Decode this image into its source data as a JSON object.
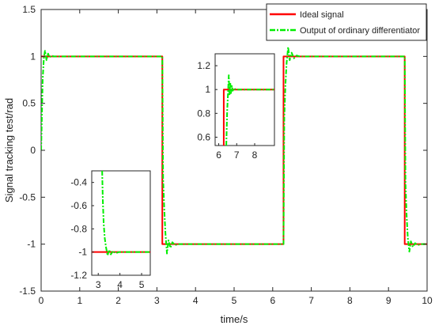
{
  "chart_data": [
    {
      "id": "main",
      "type": "line",
      "xlabel": "time/s",
      "ylabel": "Signal tracking test/rad",
      "xlim": [
        0,
        10
      ],
      "ylim": [
        -1.5,
        1.5
      ],
      "xticks": [
        0,
        1,
        2,
        3,
        4,
        5,
        6,
        7,
        8,
        9,
        10
      ],
      "yticks": [
        -1.5,
        -1,
        -0.5,
        0,
        0.5,
        1,
        1.5
      ],
      "ytick_labels": [
        "-1.5",
        "-1",
        "-0.5",
        "0",
        "0.5",
        "1",
        "1.5"
      ],
      "legend": {
        "position": "top-right",
        "entries": [
          "Ideal signal",
          "Output of ordinary differentiator"
        ]
      },
      "series": [
        {
          "name": "Ideal signal",
          "color": "#ff0000",
          "style": "solid",
          "x": [
            0,
            3.14,
            3.14,
            6.28,
            6.28,
            9.42,
            9.42,
            10
          ],
          "y": [
            1,
            1,
            -1,
            -1,
            1,
            1,
            -1,
            -1
          ]
        },
        {
          "name": "Output of ordinary differentiator",
          "color": "#00ee00",
          "style": "dash-dot",
          "x": [
            0,
            0.04,
            0.07,
            0.1,
            0.14,
            0.18,
            0.22,
            0.27,
            0.32,
            0.4,
            0.5,
            3.14,
            3.16,
            3.19,
            3.22,
            3.26,
            3.3,
            3.35,
            3.4,
            3.47,
            3.55,
            3.7,
            3.9,
            6.28,
            6.3,
            6.33,
            6.36,
            6.4,
            6.44,
            6.49,
            6.55,
            6.62,
            6.7,
            6.85,
            7.05,
            9.42,
            9.44,
            9.47,
            9.5,
            9.54,
            9.58,
            9.63,
            9.69,
            9.76,
            9.85,
            10
          ],
          "y": [
            0,
            0.75,
            0.98,
            1.06,
            0.96,
            1.03,
            0.99,
            1.01,
            1,
            1,
            1,
            1,
            -0.3,
            -0.62,
            -0.88,
            -1.1,
            -0.96,
            -1.04,
            -0.98,
            -1.01,
            -1,
            -1,
            -1,
            -1,
            0.35,
            0.7,
            0.93,
            1.1,
            0.96,
            1.04,
            0.98,
            1.01,
            1,
            1,
            1,
            1,
            -0.35,
            -0.7,
            -0.93,
            -1.08,
            -0.97,
            -1.03,
            -0.99,
            -1.01,
            -1,
            -1
          ]
        }
      ]
    },
    {
      "id": "inset-top",
      "type": "line",
      "xlim": [
        5.8,
        9.1
      ],
      "ylim": [
        0.53,
        1.3
      ],
      "xticks": [
        6,
        7,
        8
      ],
      "yticks": [
        0.6,
        0.8,
        1,
        1.2
      ],
      "ytick_labels": [
        "0.6",
        "0.8",
        "1",
        "1.2"
      ],
      "series": [
        {
          "name": "Ideal signal",
          "color": "#ff0000",
          "style": "solid",
          "x": [
            6.28,
            6.28,
            9.1
          ],
          "y": [
            0.53,
            1,
            1
          ]
        },
        {
          "name": "Output of ordinary differentiator",
          "color": "#00ee00",
          "style": "dash-dot",
          "x": [
            6.42,
            6.47,
            6.52,
            6.56,
            6.6,
            6.64,
            6.68,
            6.73,
            6.78,
            6.85,
            6.95,
            7.2,
            9.1
          ],
          "y": [
            0.53,
            0.82,
            0.98,
            1.12,
            0.95,
            1.06,
            0.97,
            1.03,
            0.99,
            1.01,
            1,
            1,
            1
          ]
        }
      ]
    },
    {
      "id": "inset-bottom",
      "type": "line",
      "xlim": [
        2.7,
        5.4
      ],
      "ylim": [
        -1.2,
        -0.3
      ],
      "xticks": [
        3,
        4,
        5
      ],
      "yticks": [
        -1.2,
        -1,
        -0.8,
        -0.6,
        -0.4
      ],
      "ytick_labels": [
        "-1.2",
        "-1",
        "-0.8",
        "-0.6",
        "-0.4"
      ],
      "series": [
        {
          "name": "Ideal signal",
          "color": "#ff0000",
          "style": "solid",
          "x": [
            2.7,
            3.14,
            3.14,
            5.4
          ],
          "y": [
            -1,
            -1,
            -1,
            -1
          ]
        },
        {
          "name": "Output of ordinary differentiator",
          "color": "#00ee00",
          "style": "dash-dot",
          "x": [
            3.18,
            3.21,
            3.25,
            3.3,
            3.36,
            3.43,
            3.5,
            3.58,
            3.68,
            3.8,
            3.95,
            4.2,
            5.4
          ],
          "y": [
            -0.3,
            -0.55,
            -0.75,
            -0.88,
            -0.96,
            -1.03,
            -0.98,
            -1.02,
            -0.99,
            -1.01,
            -1,
            -1,
            -1
          ]
        }
      ]
    }
  ]
}
